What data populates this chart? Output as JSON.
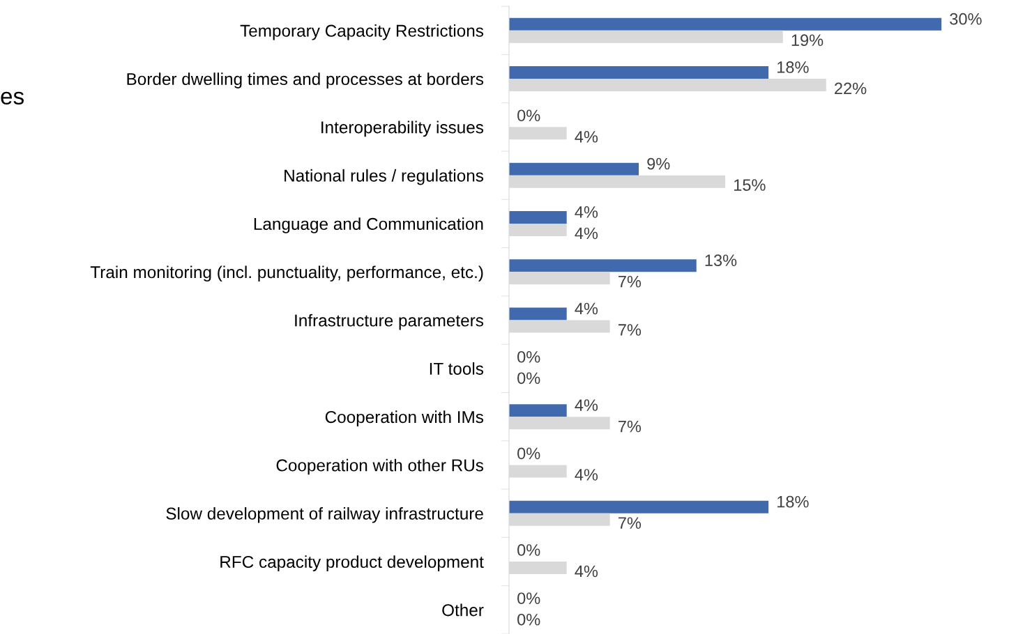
{
  "chart_data": {
    "type": "bar",
    "orientation": "horizontal",
    "categories": [
      "Temporary Capacity Restrictions",
      "Border dwelling times and processes at borders",
      "Interoperability issues",
      "National rules / regulations",
      "Language and Communication",
      "Train monitoring (incl. punctuality, performance, etc.)",
      "Infrastructure parameters",
      "IT tools",
      "Cooperation with IMs",
      "Cooperation with other RUs",
      "Slow development of railway infrastructure",
      "RFC capacity product development",
      "Other"
    ],
    "series": [
      {
        "color": "#4169ae",
        "values": [
          30,
          18,
          0,
          9,
          4,
          13,
          4,
          0,
          4,
          0,
          18,
          0,
          0
        ],
        "value_labels": [
          "30%",
          "18%",
          "0%",
          "9%",
          "4%",
          "13%",
          "4%",
          "0%",
          "4%",
          "0%",
          "18%",
          "0%",
          "0%"
        ]
      },
      {
        "color": "#d9d9d9",
        "values": [
          19,
          22,
          4,
          15,
          4,
          7,
          7,
          0,
          7,
          4,
          7,
          4,
          0
        ],
        "value_labels": [
          "19%",
          "22%",
          "4%",
          "15%",
          "4%",
          "7%",
          "7%",
          "0%",
          "7%",
          "4%",
          "7%",
          "4%",
          "0%"
        ]
      }
    ],
    "annotations": [
      "es"
    ],
    "grid": false,
    "tick_labels": "y"
  }
}
